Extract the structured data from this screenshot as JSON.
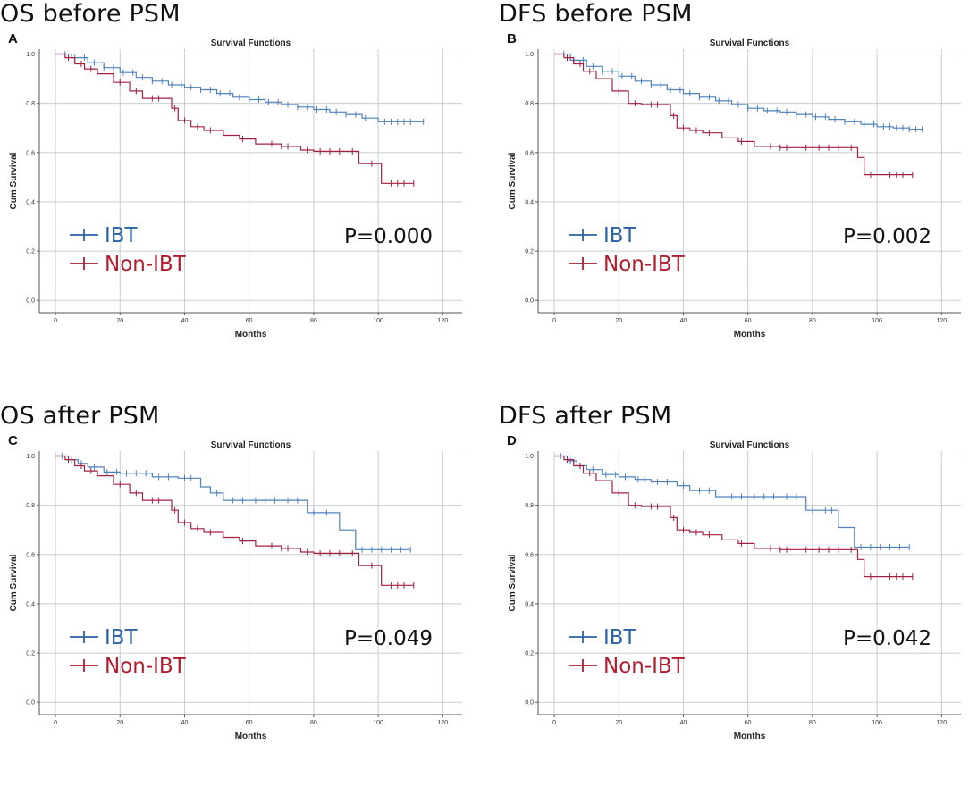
{
  "colors": {
    "ibt": "#4F81BD",
    "non_ibt": "#A3203F",
    "ibt_legend": "#2B63A5",
    "non_ibt_legend": "#B01E2E",
    "grid": "#C8CDD0",
    "axis": "#555555"
  },
  "chart_data": [
    {
      "type": "line",
      "heading": "OS before PSM",
      "panel_label": "A",
      "title": "Survival Functions",
      "xlabel": "Months",
      "ylabel": "Cum Survival",
      "xlim": [
        -5,
        126
      ],
      "ylim": [
        -0.05,
        1.02
      ],
      "xticks": [
        0,
        20,
        40,
        60,
        80,
        100,
        120
      ],
      "yticks": [
        0.0,
        0.2,
        0.4,
        0.6,
        0.8,
        1.0
      ],
      "legend": [
        "IBT",
        "Non-IBT"
      ],
      "p_value": "P=0.000",
      "series": [
        {
          "name": "IBT",
          "x": [
            0,
            5,
            10,
            15,
            20,
            25,
            30,
            35,
            40,
            45,
            50,
            55,
            60,
            65,
            70,
            75,
            80,
            85,
            90,
            95,
            100,
            105,
            110,
            114
          ],
          "y": [
            1.0,
            0.985,
            0.965,
            0.945,
            0.925,
            0.905,
            0.89,
            0.875,
            0.865,
            0.855,
            0.84,
            0.825,
            0.815,
            0.805,
            0.795,
            0.785,
            0.775,
            0.765,
            0.755,
            0.74,
            0.725,
            0.725,
            0.725,
            0.725
          ],
          "censor": [
            3,
            6,
            9,
            12,
            15,
            18,
            21,
            24,
            27,
            30,
            33,
            36,
            39,
            42,
            45,
            48,
            51,
            54,
            57,
            60,
            63,
            66,
            69,
            72,
            75,
            78,
            81,
            84,
            87,
            90,
            93,
            96,
            99,
            102,
            104,
            106,
            108,
            110,
            112,
            114
          ]
        },
        {
          "name": "Non-IBT",
          "x": [
            0,
            3,
            6,
            9,
            13,
            18,
            23,
            27,
            36,
            38,
            42,
            46,
            52,
            57,
            62,
            70,
            76,
            80,
            94,
            101,
            111
          ],
          "y": [
            1.0,
            0.985,
            0.96,
            0.94,
            0.92,
            0.885,
            0.85,
            0.82,
            0.78,
            0.73,
            0.705,
            0.69,
            0.67,
            0.655,
            0.635,
            0.625,
            0.61,
            0.605,
            0.555,
            0.475,
            0.475
          ],
          "censor": [
            4,
            8,
            11,
            20,
            25,
            30,
            32,
            37,
            40,
            44,
            48,
            58,
            67,
            70,
            72,
            78,
            82,
            85,
            88,
            92,
            98,
            104,
            106,
            108,
            111
          ]
        }
      ]
    },
    {
      "type": "line",
      "heading": "DFS before PSM",
      "panel_label": "B",
      "title": "Survival Functions",
      "xlabel": "Months",
      "ylabel": "Cum Survival",
      "xlim": [
        -5,
        126
      ],
      "ylim": [
        -0.05,
        1.02
      ],
      "xticks": [
        0,
        20,
        40,
        60,
        80,
        100,
        120
      ],
      "yticks": [
        0.0,
        0.2,
        0.4,
        0.6,
        0.8,
        1.0
      ],
      "legend": [
        "IBT",
        "Non-IBT"
      ],
      "p_value": "P=0.002",
      "series": [
        {
          "name": "IBT",
          "x": [
            0,
            5,
            10,
            15,
            20,
            25,
            30,
            35,
            40,
            45,
            50,
            55,
            60,
            65,
            70,
            75,
            80,
            85,
            90,
            95,
            100,
            105,
            110,
            114
          ],
          "y": [
            1.0,
            0.975,
            0.95,
            0.93,
            0.91,
            0.89,
            0.875,
            0.855,
            0.84,
            0.825,
            0.81,
            0.795,
            0.78,
            0.77,
            0.765,
            0.755,
            0.745,
            0.735,
            0.725,
            0.715,
            0.705,
            0.7,
            0.695,
            0.695
          ],
          "censor": [
            3,
            6,
            9,
            12,
            15,
            18,
            21,
            24,
            27,
            30,
            33,
            36,
            39,
            42,
            45,
            48,
            51,
            54,
            57,
            60,
            63,
            66,
            69,
            72,
            75,
            78,
            81,
            84,
            87,
            90,
            93,
            96,
            99,
            102,
            104,
            106,
            108,
            110,
            112,
            114
          ]
        },
        {
          "name": "Non-IBT",
          "x": [
            0,
            3,
            6,
            9,
            13,
            18,
            23,
            27,
            36,
            38,
            42,
            46,
            52,
            57,
            62,
            70,
            80,
            94,
            96,
            111
          ],
          "y": [
            1.0,
            0.985,
            0.96,
            0.93,
            0.9,
            0.85,
            0.8,
            0.795,
            0.75,
            0.7,
            0.69,
            0.68,
            0.66,
            0.645,
            0.625,
            0.62,
            0.62,
            0.58,
            0.51,
            0.51
          ],
          "censor": [
            4,
            8,
            11,
            20,
            25,
            30,
            32,
            37,
            40,
            44,
            48,
            58,
            67,
            70,
            72,
            78,
            82,
            85,
            88,
            92,
            98,
            104,
            106,
            108,
            111
          ]
        }
      ]
    },
    {
      "type": "line",
      "heading": "OS after PSM",
      "panel_label": "C",
      "title": "Survival Functions",
      "xlabel": "Months",
      "ylabel": "Cum Survival",
      "xlim": [
        -5,
        126
      ],
      "ylim": [
        -0.05,
        1.02
      ],
      "xticks": [
        0,
        20,
        40,
        60,
        80,
        100,
        120
      ],
      "yticks": [
        0.0,
        0.2,
        0.4,
        0.6,
        0.8,
        1.0
      ],
      "legend": [
        "IBT",
        "Non-IBT"
      ],
      "p_value": "P=0.049",
      "series": [
        {
          "name": "IBT",
          "x": [
            0,
            4,
            7,
            10,
            15,
            20,
            30,
            38,
            45,
            48,
            52,
            78,
            88,
            93,
            110
          ],
          "y": [
            1.0,
            0.985,
            0.97,
            0.955,
            0.935,
            0.93,
            0.915,
            0.91,
            0.875,
            0.85,
            0.82,
            0.77,
            0.7,
            0.62,
            0.62
          ],
          "censor": [
            2,
            5,
            8,
            12,
            16,
            19,
            22,
            25,
            28,
            32,
            35,
            40,
            42,
            50,
            55,
            58,
            62,
            65,
            68,
            72,
            75,
            80,
            84,
            86,
            95,
            98,
            101,
            104,
            107,
            110
          ]
        },
        {
          "name": "Non-IBT",
          "x": [
            0,
            3,
            6,
            9,
            13,
            18,
            23,
            27,
            36,
            38,
            42,
            46,
            52,
            57,
            62,
            70,
            76,
            80,
            94,
            101,
            111
          ],
          "y": [
            1.0,
            0.985,
            0.96,
            0.94,
            0.92,
            0.885,
            0.85,
            0.82,
            0.78,
            0.73,
            0.705,
            0.69,
            0.67,
            0.655,
            0.635,
            0.625,
            0.61,
            0.605,
            0.555,
            0.475,
            0.475
          ],
          "censor": [
            4,
            8,
            11,
            20,
            25,
            30,
            32,
            37,
            40,
            44,
            48,
            58,
            67,
            70,
            72,
            78,
            82,
            85,
            88,
            92,
            98,
            104,
            106,
            108,
            111
          ]
        }
      ]
    },
    {
      "type": "line",
      "heading": "DFS after PSM",
      "panel_label": "D",
      "title": "Survival Functions",
      "xlabel": "Months",
      "ylabel": "Cum Survival",
      "xlim": [
        -5,
        126
      ],
      "ylim": [
        -0.05,
        1.02
      ],
      "xticks": [
        0,
        20,
        40,
        60,
        80,
        100,
        120
      ],
      "yticks": [
        0.0,
        0.2,
        0.4,
        0.6,
        0.8,
        1.0
      ],
      "legend": [
        "IBT",
        "Non-IBT"
      ],
      "p_value": "P=0.042",
      "series": [
        {
          "name": "IBT",
          "x": [
            0,
            4,
            7,
            10,
            15,
            20,
            25,
            30,
            38,
            42,
            50,
            78,
            88,
            93,
            110
          ],
          "y": [
            1.0,
            0.98,
            0.96,
            0.945,
            0.925,
            0.915,
            0.905,
            0.895,
            0.88,
            0.86,
            0.835,
            0.78,
            0.71,
            0.63,
            0.63
          ],
          "censor": [
            2,
            5,
            8,
            12,
            16,
            19,
            22,
            26,
            28,
            32,
            35,
            40,
            45,
            48,
            55,
            58,
            62,
            65,
            68,
            72,
            75,
            80,
            84,
            86,
            95,
            98,
            101,
            104,
            107,
            110
          ]
        },
        {
          "name": "Non-IBT",
          "x": [
            0,
            3,
            6,
            9,
            13,
            18,
            23,
            27,
            36,
            38,
            42,
            46,
            52,
            57,
            62,
            70,
            80,
            94,
            96,
            111
          ],
          "y": [
            1.0,
            0.985,
            0.96,
            0.93,
            0.9,
            0.85,
            0.8,
            0.795,
            0.75,
            0.7,
            0.69,
            0.68,
            0.66,
            0.645,
            0.625,
            0.62,
            0.62,
            0.58,
            0.51,
            0.51
          ],
          "censor": [
            4,
            8,
            11,
            20,
            25,
            30,
            32,
            37,
            40,
            44,
            48,
            58,
            67,
            70,
            72,
            78,
            82,
            85,
            88,
            92,
            98,
            104,
            106,
            108,
            111
          ]
        }
      ]
    }
  ]
}
